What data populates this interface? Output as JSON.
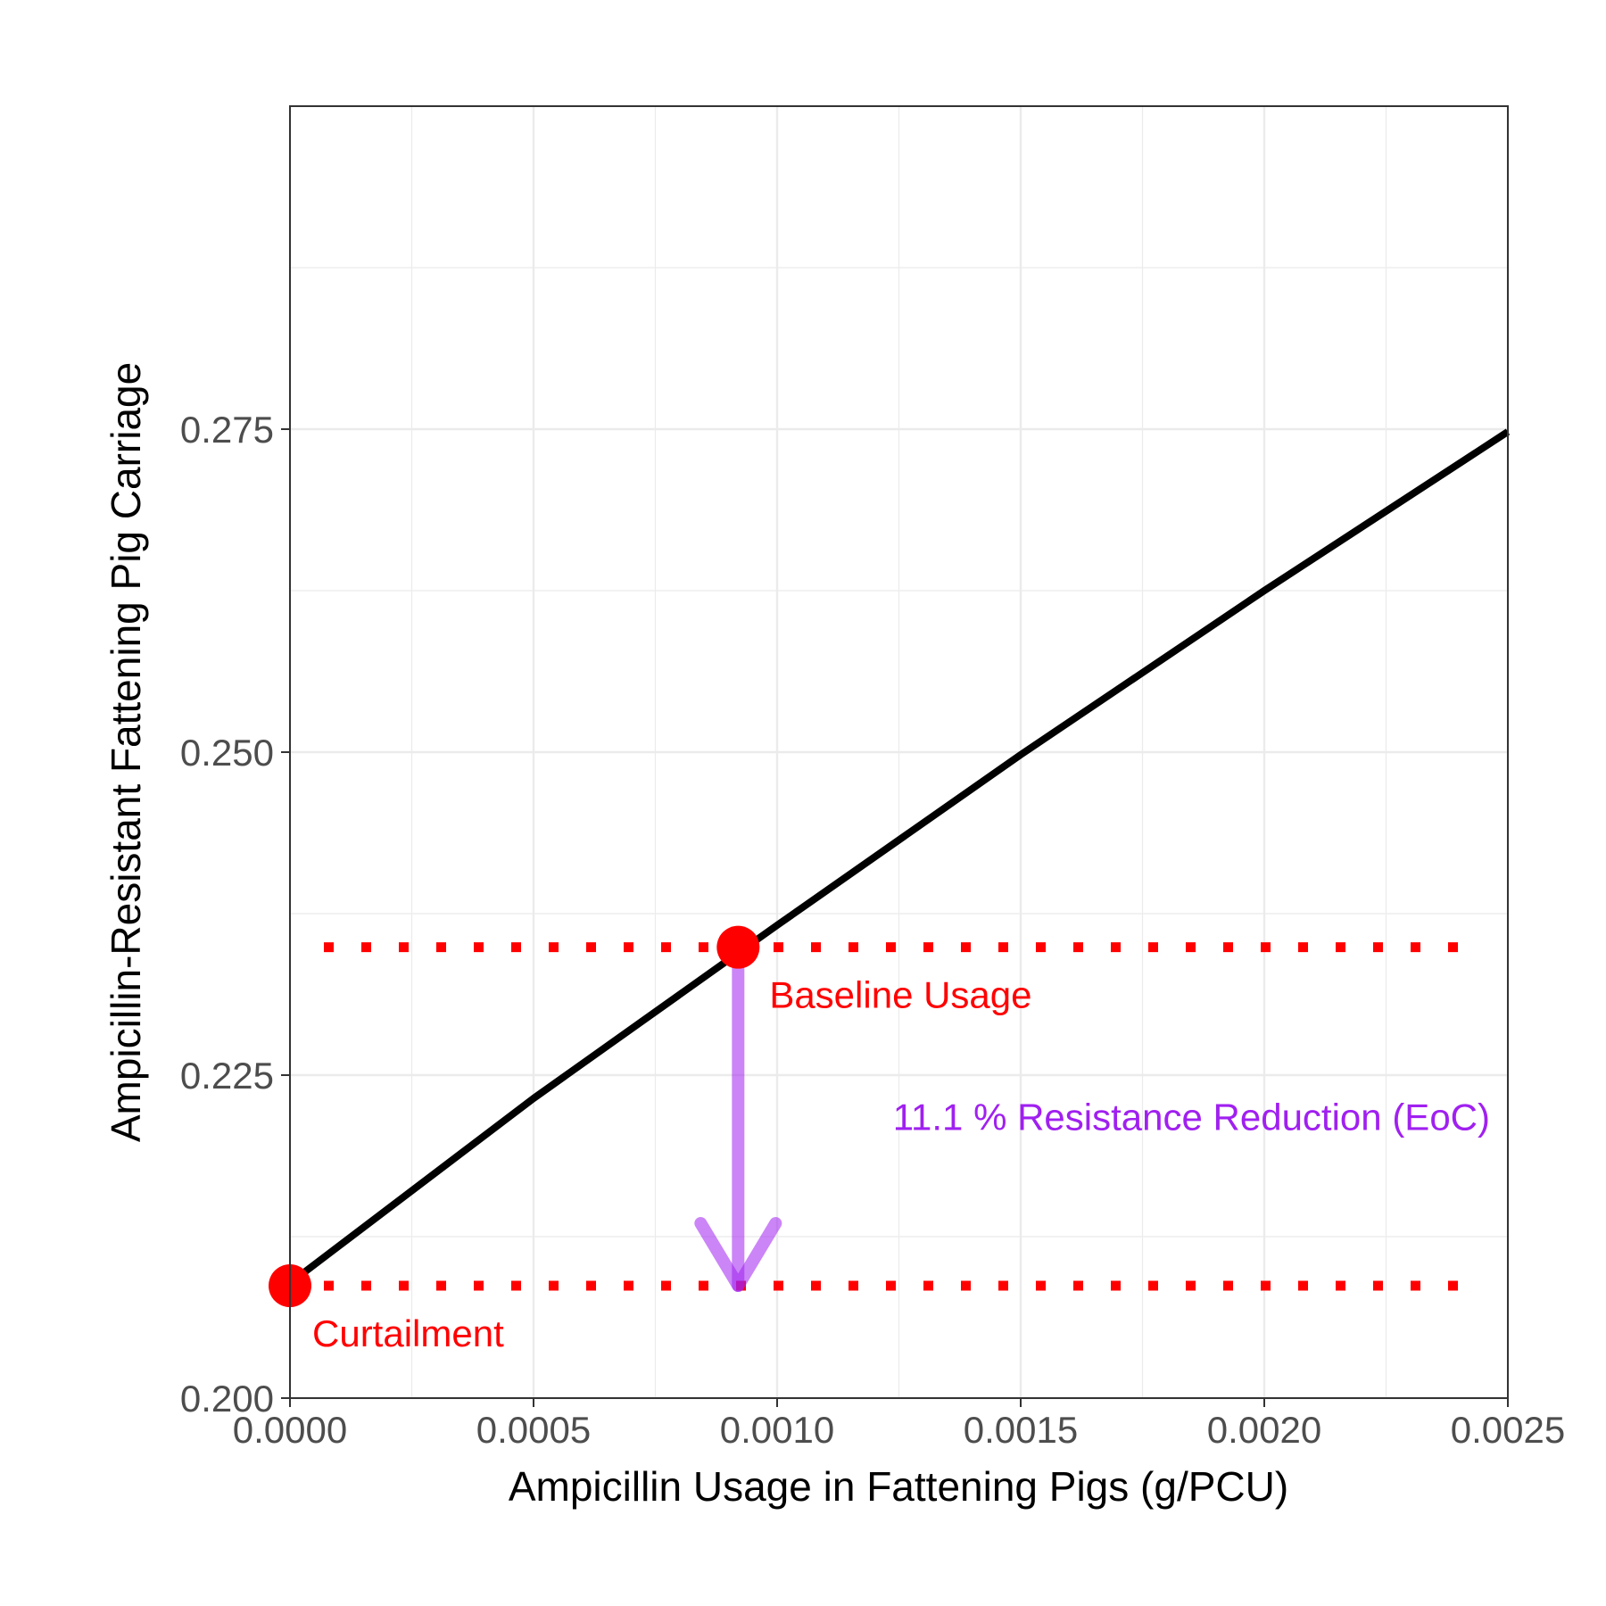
{
  "chart_data": {
    "type": "line",
    "xlabel": "Ampicillin Usage in Fattening Pigs (g/PCU)",
    "ylabel": "Ampicillin-Resistant Fattening Pig Carriage",
    "xlim": [
      0,
      0.0025
    ],
    "ylim": [
      0.2,
      0.3
    ],
    "x_ticks": [
      0,
      0.0005,
      0.001,
      0.0015,
      0.002,
      0.0025
    ],
    "x_tick_labels": [
      "0.0000",
      "0.0005",
      "0.0010",
      "0.0015",
      "0.0020",
      "0.0025"
    ],
    "y_ticks": [
      0.2,
      0.225,
      0.25,
      0.275
    ],
    "y_tick_labels": [
      "0.200",
      "0.225",
      "0.250",
      "0.275"
    ],
    "grid": true,
    "series": [
      {
        "color": "#000000",
        "x": [
          0,
          0.0005,
          0.001,
          0.0015,
          0.002,
          0.0025
        ],
        "y": [
          0.2089,
          0.2232,
          0.2366,
          0.2498,
          0.2625,
          0.2748
        ]
      }
    ],
    "points": [
      {
        "label": "Baseline Usage",
        "x": 0.00092,
        "y": 0.2349,
        "color": "#ff0000"
      },
      {
        "label": "Curtailment",
        "x": 0,
        "y": 0.2087,
        "color": "#ff0000"
      }
    ],
    "reference_lines": [
      {
        "y": 0.2349,
        "style": "dotted",
        "color": "#ff0000"
      },
      {
        "y": 0.2087,
        "style": "dotted",
        "color": "#ff0000"
      }
    ],
    "arrow": {
      "x": 0.00092,
      "y_from": 0.2349,
      "y_to": 0.2087,
      "color": "#a020f0",
      "label": "11.1 % Resistance Reduction (EoC)"
    }
  }
}
